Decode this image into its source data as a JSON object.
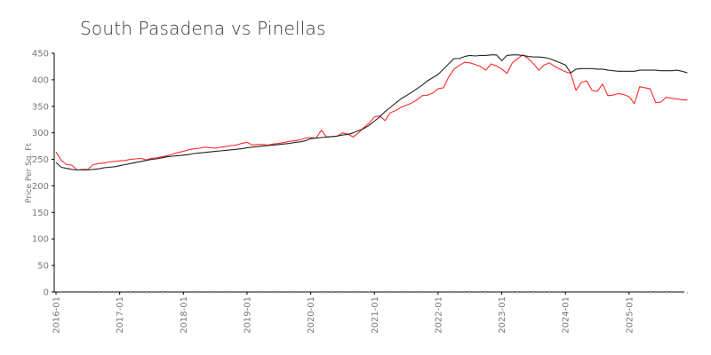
{
  "chart_data": {
    "type": "line",
    "title": "South Pasadena vs Pinellas",
    "xlabel": "",
    "ylabel": "Price Per Sq. Ft",
    "ylim": [
      0,
      450
    ],
    "yticks": [
      0,
      50,
      100,
      150,
      200,
      250,
      300,
      350,
      400,
      450
    ],
    "xtick_labels": [
      "2016-01",
      "2017-01",
      "2018-01",
      "2019-01",
      "2020-01",
      "2021-01",
      "2022-01",
      "2023-01",
      "2024-01",
      "2025-01"
    ],
    "x_start": "2016-01",
    "x_end": "2025-11",
    "grid": false,
    "legend": "none",
    "series": [
      {
        "name": "South Pasadena",
        "color": "#ff2a2a",
        "values": [
          264,
          248,
          240,
          239,
          230,
          231,
          231,
          240,
          242,
          243,
          245,
          246,
          247,
          248,
          250,
          251,
          252,
          249,
          252,
          253,
          255,
          257,
          260,
          263,
          265,
          268,
          270,
          271,
          273,
          272,
          271,
          273,
          274,
          276,
          277,
          280,
          282,
          277,
          278,
          278,
          277,
          279,
          280,
          282,
          284,
          285,
          287,
          290,
          291,
          290,
          305,
          292,
          293,
          294,
          300,
          298,
          292,
          300,
          310,
          318,
          330,
          332,
          323,
          338,
          342,
          348,
          352,
          356,
          362,
          370,
          371,
          375,
          383,
          385,
          405,
          420,
          427,
          433,
          432,
          429,
          425,
          418,
          430,
          426,
          420,
          412,
          432,
          440,
          447,
          440,
          430,
          418,
          428,
          432,
          425,
          420,
          415,
          412,
          380,
          395,
          398,
          380,
          378,
          392,
          370,
          371,
          374,
          372,
          368,
          355,
          387,
          385,
          383,
          357,
          358,
          367,
          365,
          364,
          362,
          362
        ]
      },
      {
        "name": "Pinellas",
        "color": "#222222",
        "values": [
          244,
          235,
          233,
          231,
          230,
          230,
          230,
          231,
          232,
          234,
          235,
          236,
          238,
          240,
          242,
          244,
          246,
          248,
          250,
          251,
          253,
          255,
          256,
          257,
          258,
          259,
          261,
          262,
          263,
          264,
          265,
          266,
          267,
          268,
          269,
          270,
          272,
          273,
          274,
          275,
          276,
          277,
          278,
          279,
          280,
          282,
          283,
          285,
          289,
          290,
          291,
          292,
          293,
          294,
          296,
          297,
          300,
          304,
          308,
          314,
          322,
          330,
          340,
          348,
          356,
          364,
          370,
          376,
          383,
          390,
          398,
          404,
          410,
          420,
          430,
          440,
          440,
          444,
          446,
          445,
          446,
          446,
          447,
          447,
          436,
          446,
          447,
          447,
          446,
          444,
          443,
          443,
          442,
          440,
          436,
          432,
          428,
          413,
          420,
          421,
          421,
          421,
          420,
          420,
          418,
          417,
          416,
          416,
          416,
          416,
          418,
          418,
          418,
          418,
          417,
          417,
          417,
          418,
          416,
          413
        ]
      }
    ]
  }
}
